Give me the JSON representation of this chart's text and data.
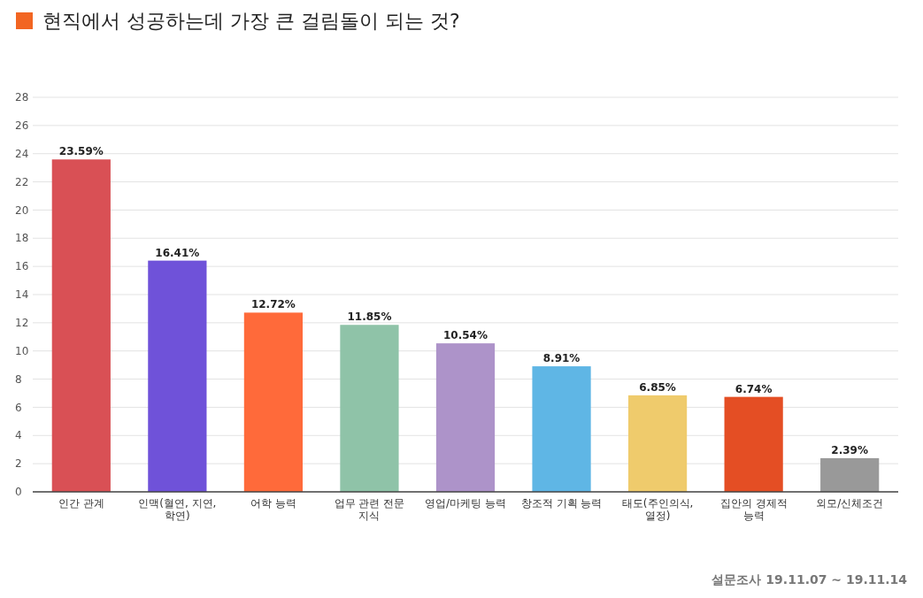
{
  "chart_data": {
    "type": "bar",
    "title": "현직에서 성공하는데 가장 큰 걸림돌이 되는 것?",
    "categories": [
      "인간 관계",
      "인맥(혈연, 지연, 학연)",
      "어학 능력",
      "업무 관련 전문 지식",
      "영업/마케팅 능력",
      "창조적 기획 능력",
      "태도(주인의식, 열정)",
      "집안의 경제적 능력",
      "외모/신체조건"
    ],
    "values": [
      23.59,
      16.41,
      12.72,
      11.85,
      10.54,
      8.91,
      6.85,
      6.74,
      2.39
    ],
    "value_labels": [
      "23.59%",
      "16.41%",
      "12.72%",
      "11.85%",
      "10.54%",
      "8.91%",
      "6.85%",
      "6.74%",
      "2.39%"
    ],
    "colors": [
      "#d95055",
      "#6f52d9",
      "#ff6a3a",
      "#8fc3a8",
      "#ad93c9",
      "#5fb6e5",
      "#efcb6c",
      "#e44e24",
      "#999999"
    ],
    "ylim": [
      0,
      28
    ],
    "yticks": [
      0,
      2,
      4,
      6,
      8,
      10,
      12,
      14,
      16,
      18,
      20,
      22,
      24,
      26,
      28
    ],
    "grid": "y",
    "annotations": [
      "설문조사 19.11.07 ~ 19.11.14"
    ]
  }
}
